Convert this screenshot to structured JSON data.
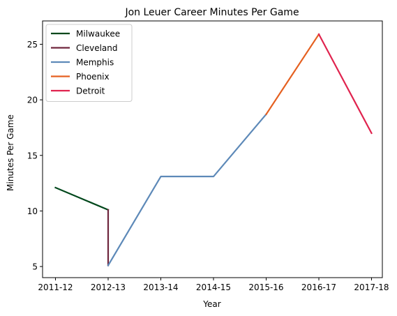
{
  "chart_data": {
    "type": "line",
    "title": "Jon Leuer Career Minutes Per Game",
    "xlabel": "Year",
    "ylabel": "Minutes Per Game",
    "categories": [
      "2011-12",
      "2012-13",
      "2013-14",
      "2014-15",
      "2015-16",
      "2016-17",
      "2017-18"
    ],
    "ylim": [
      4.0,
      27.1
    ],
    "yticks": [
      5,
      10,
      15,
      20,
      25
    ],
    "grid": false,
    "legend_position": "top-left",
    "series": [
      {
        "name": "Milwaukee",
        "color": "#00471B",
        "points": [
          [
            "2011-12",
            12.1
          ],
          [
            "2012-13",
            10.1
          ]
        ]
      },
      {
        "name": "Cleveland",
        "color": "#6F263D",
        "points": [
          [
            "2012-13",
            10.1
          ],
          [
            "2012-13",
            5.1
          ]
        ]
      },
      {
        "name": "Memphis",
        "color": "#5D89B8",
        "points": [
          [
            "2012-13",
            5.1
          ],
          [
            "2013-14",
            13.1
          ],
          [
            "2014-15",
            13.1
          ],
          [
            "2015-16",
            18.7
          ]
        ]
      },
      {
        "name": "Phoenix",
        "color": "#E56020",
        "points": [
          [
            "2015-16",
            18.7
          ],
          [
            "2016-17",
            25.9
          ]
        ]
      },
      {
        "name": "Detroit",
        "color": "#E0234E",
        "points": [
          [
            "2016-17",
            25.9
          ],
          [
            "2017-18",
            17.0
          ]
        ]
      }
    ]
  }
}
